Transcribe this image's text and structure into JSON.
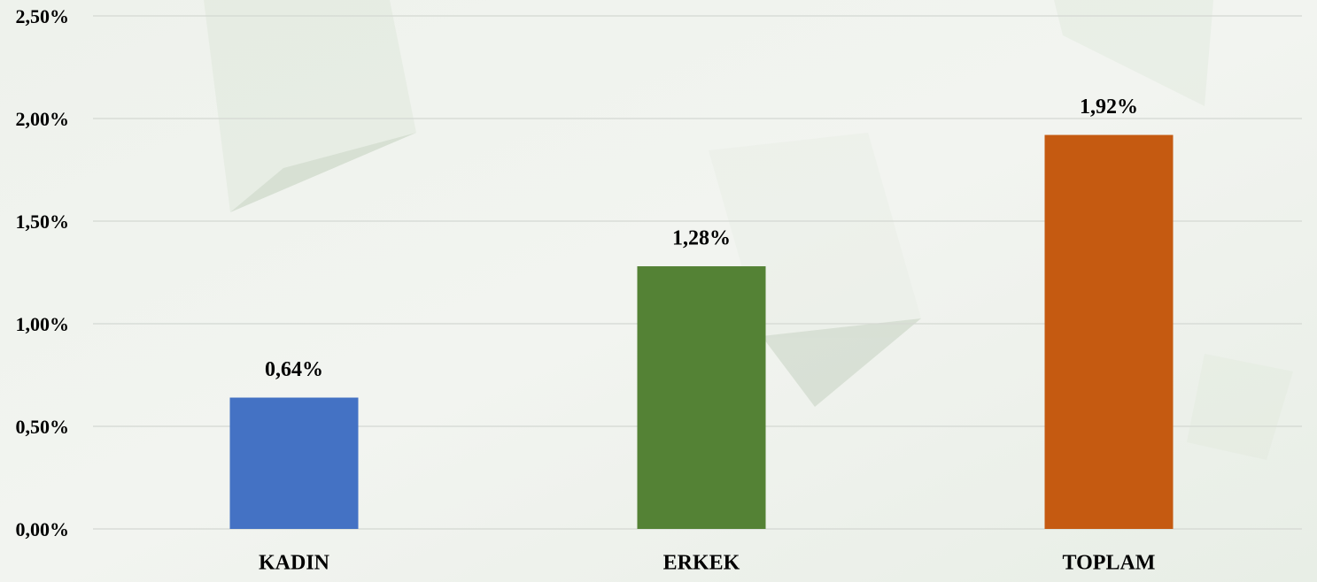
{
  "chart_data": {
    "type": "bar",
    "categories": [
      "KADIN",
      "ERKEK",
      "TOPLAM"
    ],
    "values": [
      0.64,
      1.28,
      1.92
    ],
    "value_labels": [
      "0,64%",
      "1,28%",
      "1,92%"
    ],
    "colors": [
      "#4472c4",
      "#548235",
      "#c55a11"
    ],
    "ylim": [
      0,
      2.5
    ],
    "yticks": [
      {
        "value": 0,
        "label": "0,00%"
      },
      {
        "value": 0.5,
        "label": "0,50%"
      },
      {
        "value": 1,
        "label": "1,00%"
      },
      {
        "value": 1.5,
        "label": "1,50%"
      },
      {
        "value": 2,
        "label": "2,00%"
      },
      {
        "value": 2.5,
        "label": "2,50%"
      }
    ],
    "grid": true
  }
}
